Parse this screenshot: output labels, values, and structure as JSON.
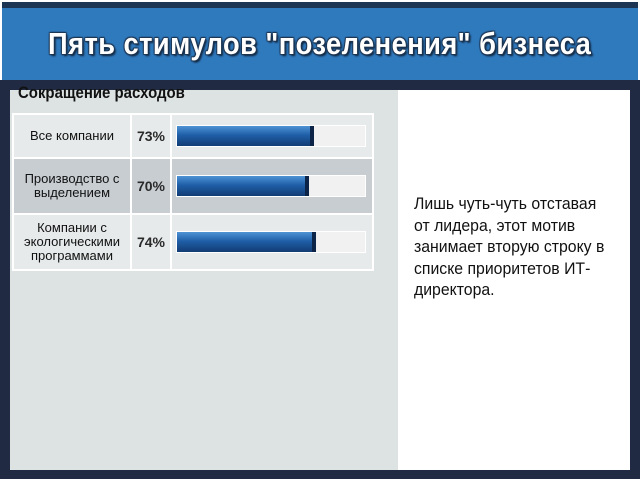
{
  "title": "Пять стимулов \"позеленения\" бизнеса",
  "section": {
    "title": "Сокращение расходов"
  },
  "rows": [
    {
      "label": "Все компании",
      "percent_text": "73%",
      "value": 73
    },
    {
      "label": "Производство с выделением",
      "percent_text": "70%",
      "value": 70
    },
    {
      "label": "Компании с экологическими программами",
      "percent_text": "74%",
      "value": 74
    }
  ],
  "description": "Лишь чуть-чуть отставая от лидера, этот мотив занимает вторую строку в списке приоритетов ИТ-директора.",
  "colors": {
    "title_bar": "#2f79bd",
    "panel": "#202a42",
    "bar_fill": "#1f5fa8"
  }
}
